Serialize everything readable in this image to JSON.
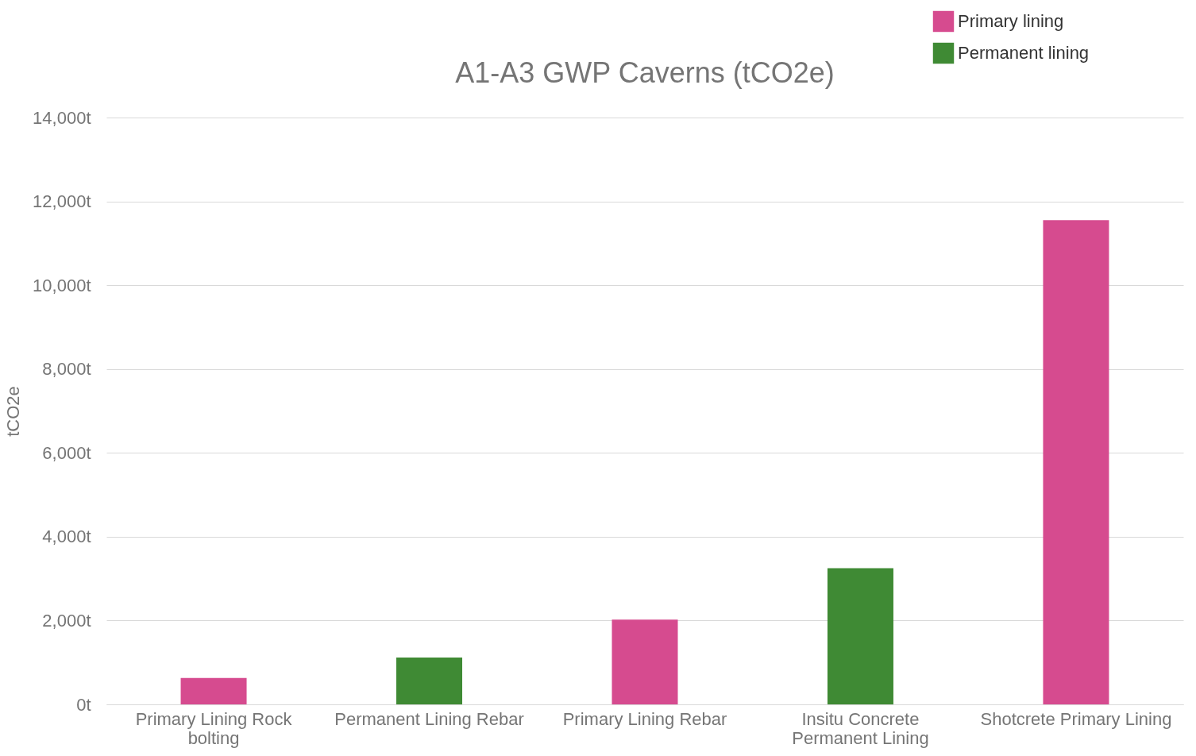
{
  "chart_data": {
    "type": "bar",
    "title": "A1-A3 GWP Caverns (tCO2e)",
    "ylabel": "tCO2e",
    "categories": [
      "Primary Lining Rock bolting",
      "Permanent Lining Rebar",
      "Primary Lining Rebar",
      "Insitu Concrete Permanent Lining",
      "Shotcrete Primary Lining"
    ],
    "series": [
      {
        "name": "Primary lining",
        "color": "#d64b8f",
        "values": [
          630,
          null,
          2020,
          null,
          11550
        ]
      },
      {
        "name": "Permanent lining",
        "color": "#3f8a34",
        "values": [
          null,
          1120,
          null,
          3250,
          null
        ]
      }
    ],
    "ylim": [
      0,
      14000
    ],
    "yticks": [
      {
        "value": 0,
        "label": "0t"
      },
      {
        "value": 2000,
        "label": "2,000t"
      },
      {
        "value": 4000,
        "label": "4,000t"
      },
      {
        "value": 6000,
        "label": "6,000t"
      },
      {
        "value": 8000,
        "label": "8,000t"
      },
      {
        "value": 10000,
        "label": "10,000t"
      },
      {
        "value": 12000,
        "label": "12,000t"
      },
      {
        "value": 14000,
        "label": "14,000t"
      }
    ],
    "grid": "y",
    "legend": "top right"
  }
}
